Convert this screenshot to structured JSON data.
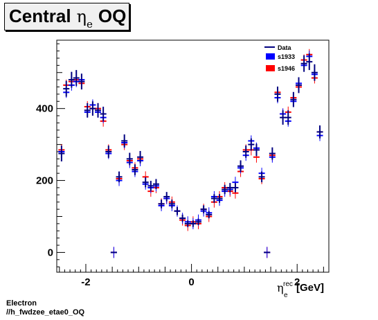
{
  "title": {
    "main": "Central",
    "symbol": "η",
    "subscript": "e",
    "suffix": "OQ"
  },
  "footer": {
    "line1": "Electron",
    "line2": "//h_fwdzee_etae0_OQ"
  },
  "chart_data": {
    "type": "scatter",
    "xlabel": {
      "symbol": "η",
      "sub": "e",
      "sup": "rec",
      "unit": "[GeV]"
    },
    "xlim": [
      -2.55,
      2.6
    ],
    "ylim": [
      -55,
      590
    ],
    "xticks": [
      -2,
      0,
      2
    ],
    "yticks": [
      0,
      200,
      400
    ],
    "legend_position": "top-right",
    "series": [
      {
        "name": "Data",
        "color": "#000080",
        "marker": "line",
        "x": [
          -2.46,
          -2.37,
          -2.27,
          -2.18,
          -2.08,
          -1.97,
          -1.87,
          -1.77,
          -1.67,
          -1.57,
          -1.47,
          -1.37,
          -1.27,
          -1.17,
          -1.07,
          -0.97,
          -0.87,
          -0.77,
          -0.67,
          -0.57,
          -0.47,
          -0.37,
          -0.27,
          -0.17,
          -0.07,
          0.03,
          0.13,
          0.23,
          0.33,
          0.43,
          0.53,
          0.63,
          0.73,
          0.83,
          0.93,
          1.03,
          1.13,
          1.23,
          1.33,
          1.43,
          1.53,
          1.63,
          1.73,
          1.83,
          1.93,
          2.03,
          2.13,
          2.23,
          2.33,
          2.43
        ],
        "y": [
          275,
          455,
          480,
          485,
          475,
          395,
          400,
          395,
          385,
          280,
          0,
          210,
          310,
          260,
          230,
          265,
          195,
          185,
          190,
          135,
          155,
          135,
          115,
          95,
          80,
          80,
          85,
          120,
          105,
          150,
          150,
          175,
          180,
          180,
          240,
          280,
          300,
          285,
          210,
          0,
          275,
          440,
          375,
          375,
          425,
          465,
          525,
          530,
          500,
          335
        ],
        "yerr": [
          22,
          22,
          22,
          22,
          22,
          20,
          20,
          20,
          20,
          17,
          0,
          15,
          18,
          17,
          15,
          17,
          14,
          14,
          14,
          12,
          13,
          12,
          11,
          10,
          9,
          9,
          9,
          11,
          10,
          12,
          12,
          13,
          13,
          13,
          16,
          17,
          17,
          17,
          15,
          0,
          17,
          21,
          20,
          20,
          21,
          22,
          23,
          23,
          23,
          18
        ]
      },
      {
        "name": "s1933",
        "color": "#0000ff",
        "marker": "box",
        "x": [
          -2.46,
          -2.37,
          -2.27,
          -2.18,
          -2.08,
          -1.97,
          -1.87,
          -1.77,
          -1.67,
          -1.57,
          -1.47,
          -1.37,
          -1.27,
          -1.17,
          -1.07,
          -0.97,
          -0.87,
          -0.77,
          -0.67,
          -0.57,
          -0.47,
          -0.37,
          -0.27,
          -0.17,
          -0.07,
          0.03,
          0.13,
          0.23,
          0.33,
          0.43,
          0.53,
          0.63,
          0.73,
          0.83,
          0.93,
          1.03,
          1.13,
          1.23,
          1.33,
          1.43,
          1.53,
          1.63,
          1.73,
          1.83,
          1.93,
          2.03,
          2.13,
          2.23,
          2.33,
          2.43
        ],
        "y": [
          280,
          445,
          465,
          475,
          480,
          390,
          410,
          390,
          375,
          275,
          0,
          200,
          305,
          250,
          225,
          255,
          190,
          180,
          185,
          130,
          150,
          130,
          115,
          95,
          85,
          80,
          90,
          115,
          110,
          155,
          145,
          170,
          175,
          195,
          235,
          270,
          310,
          290,
          220,
          0,
          265,
          430,
          385,
          365,
          420,
          470,
          520,
          545,
          495,
          325
        ]
      },
      {
        "name": "s1946",
        "color": "#ff0000",
        "marker": "box",
        "x": [
          -2.46,
          -2.37,
          -2.27,
          -2.18,
          -2.08,
          -1.97,
          -1.87,
          -1.77,
          -1.67,
          -1.57,
          -1.47,
          -1.37,
          -1.27,
          -1.17,
          -1.07,
          -0.97,
          -0.87,
          -0.77,
          -0.67,
          -0.57,
          -0.47,
          -0.37,
          -0.27,
          -0.17,
          -0.07,
          0.03,
          0.13,
          0.23,
          0.33,
          0.43,
          0.53,
          0.63,
          0.73,
          0.83,
          0.93,
          1.03,
          1.13,
          1.23,
          1.33,
          1.43,
          1.53,
          1.63,
          1.73,
          1.83,
          1.93,
          2.03,
          2.13,
          2.23,
          2.33,
          2.43
        ],
        "y": [
          285,
          465,
          475,
          480,
          470,
          405,
          400,
          400,
          365,
          285,
          0,
          205,
          300,
          255,
          235,
          260,
          210,
          170,
          180,
          135,
          150,
          140,
          115,
          90,
          75,
          85,
          80,
          120,
          100,
          140,
          155,
          180,
          170,
          165,
          225,
          285,
          285,
          265,
          205,
          0,
          270,
          445,
          385,
          390,
          430,
          460,
          535,
          550,
          485,
          335
        ]
      }
    ]
  }
}
